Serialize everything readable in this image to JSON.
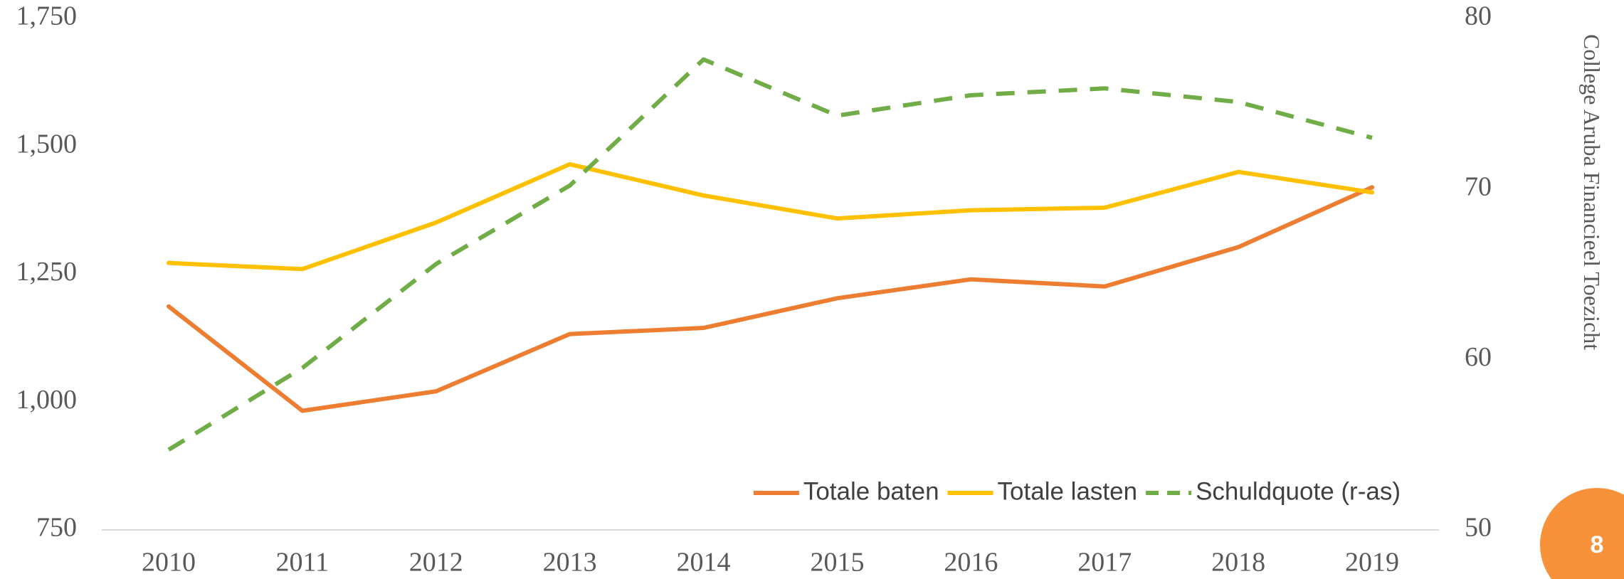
{
  "chart_data": {
    "type": "line",
    "categories": [
      "2010",
      "2011",
      "2012",
      "2013",
      "2014",
      "2015",
      "2016",
      "2017",
      "2018",
      "2019"
    ],
    "series": [
      {
        "name": "Totale baten",
        "color": "#ED7D31",
        "values": [
          1187,
          983,
          1021,
          1133,
          1145,
          1203,
          1240,
          1226,
          1303,
          1420
        ]
      },
      {
        "name": "Totale lasten",
        "color": "#FFC000",
        "values": [
          1272,
          1260,
          1351,
          1465,
          1404,
          1359,
          1375,
          1380,
          1450,
          1410
        ]
      },
      {
        "name": "Schuldquote (r-as)",
        "color": "#70AD47",
        "dashed": true,
        "axis": "y2",
        "values": [
          54.7,
          59.5,
          65.6,
          70.2,
          77.6,
          74.3,
          75.5,
          75.9,
          75.1,
          73.0
        ]
      }
    ],
    "ylim": [
      750,
      1750
    ],
    "yticks": [
      750,
      {
        "value": 1000,
        "label": "1,000"
      },
      {
        "value": 1250,
        "label": "1,250"
      },
      {
        "value": 1500,
        "label": "1,500"
      },
      {
        "value": 1750,
        "label": "1,750"
      }
    ],
    "y2lim": [
      50,
      80
    ],
    "y2ticks": [
      50,
      60,
      70,
      80
    ],
    "grid": false,
    "legend": "bottom-right"
  },
  "side_text": "College Aruba Financieel Toezicht",
  "page_number": "8"
}
